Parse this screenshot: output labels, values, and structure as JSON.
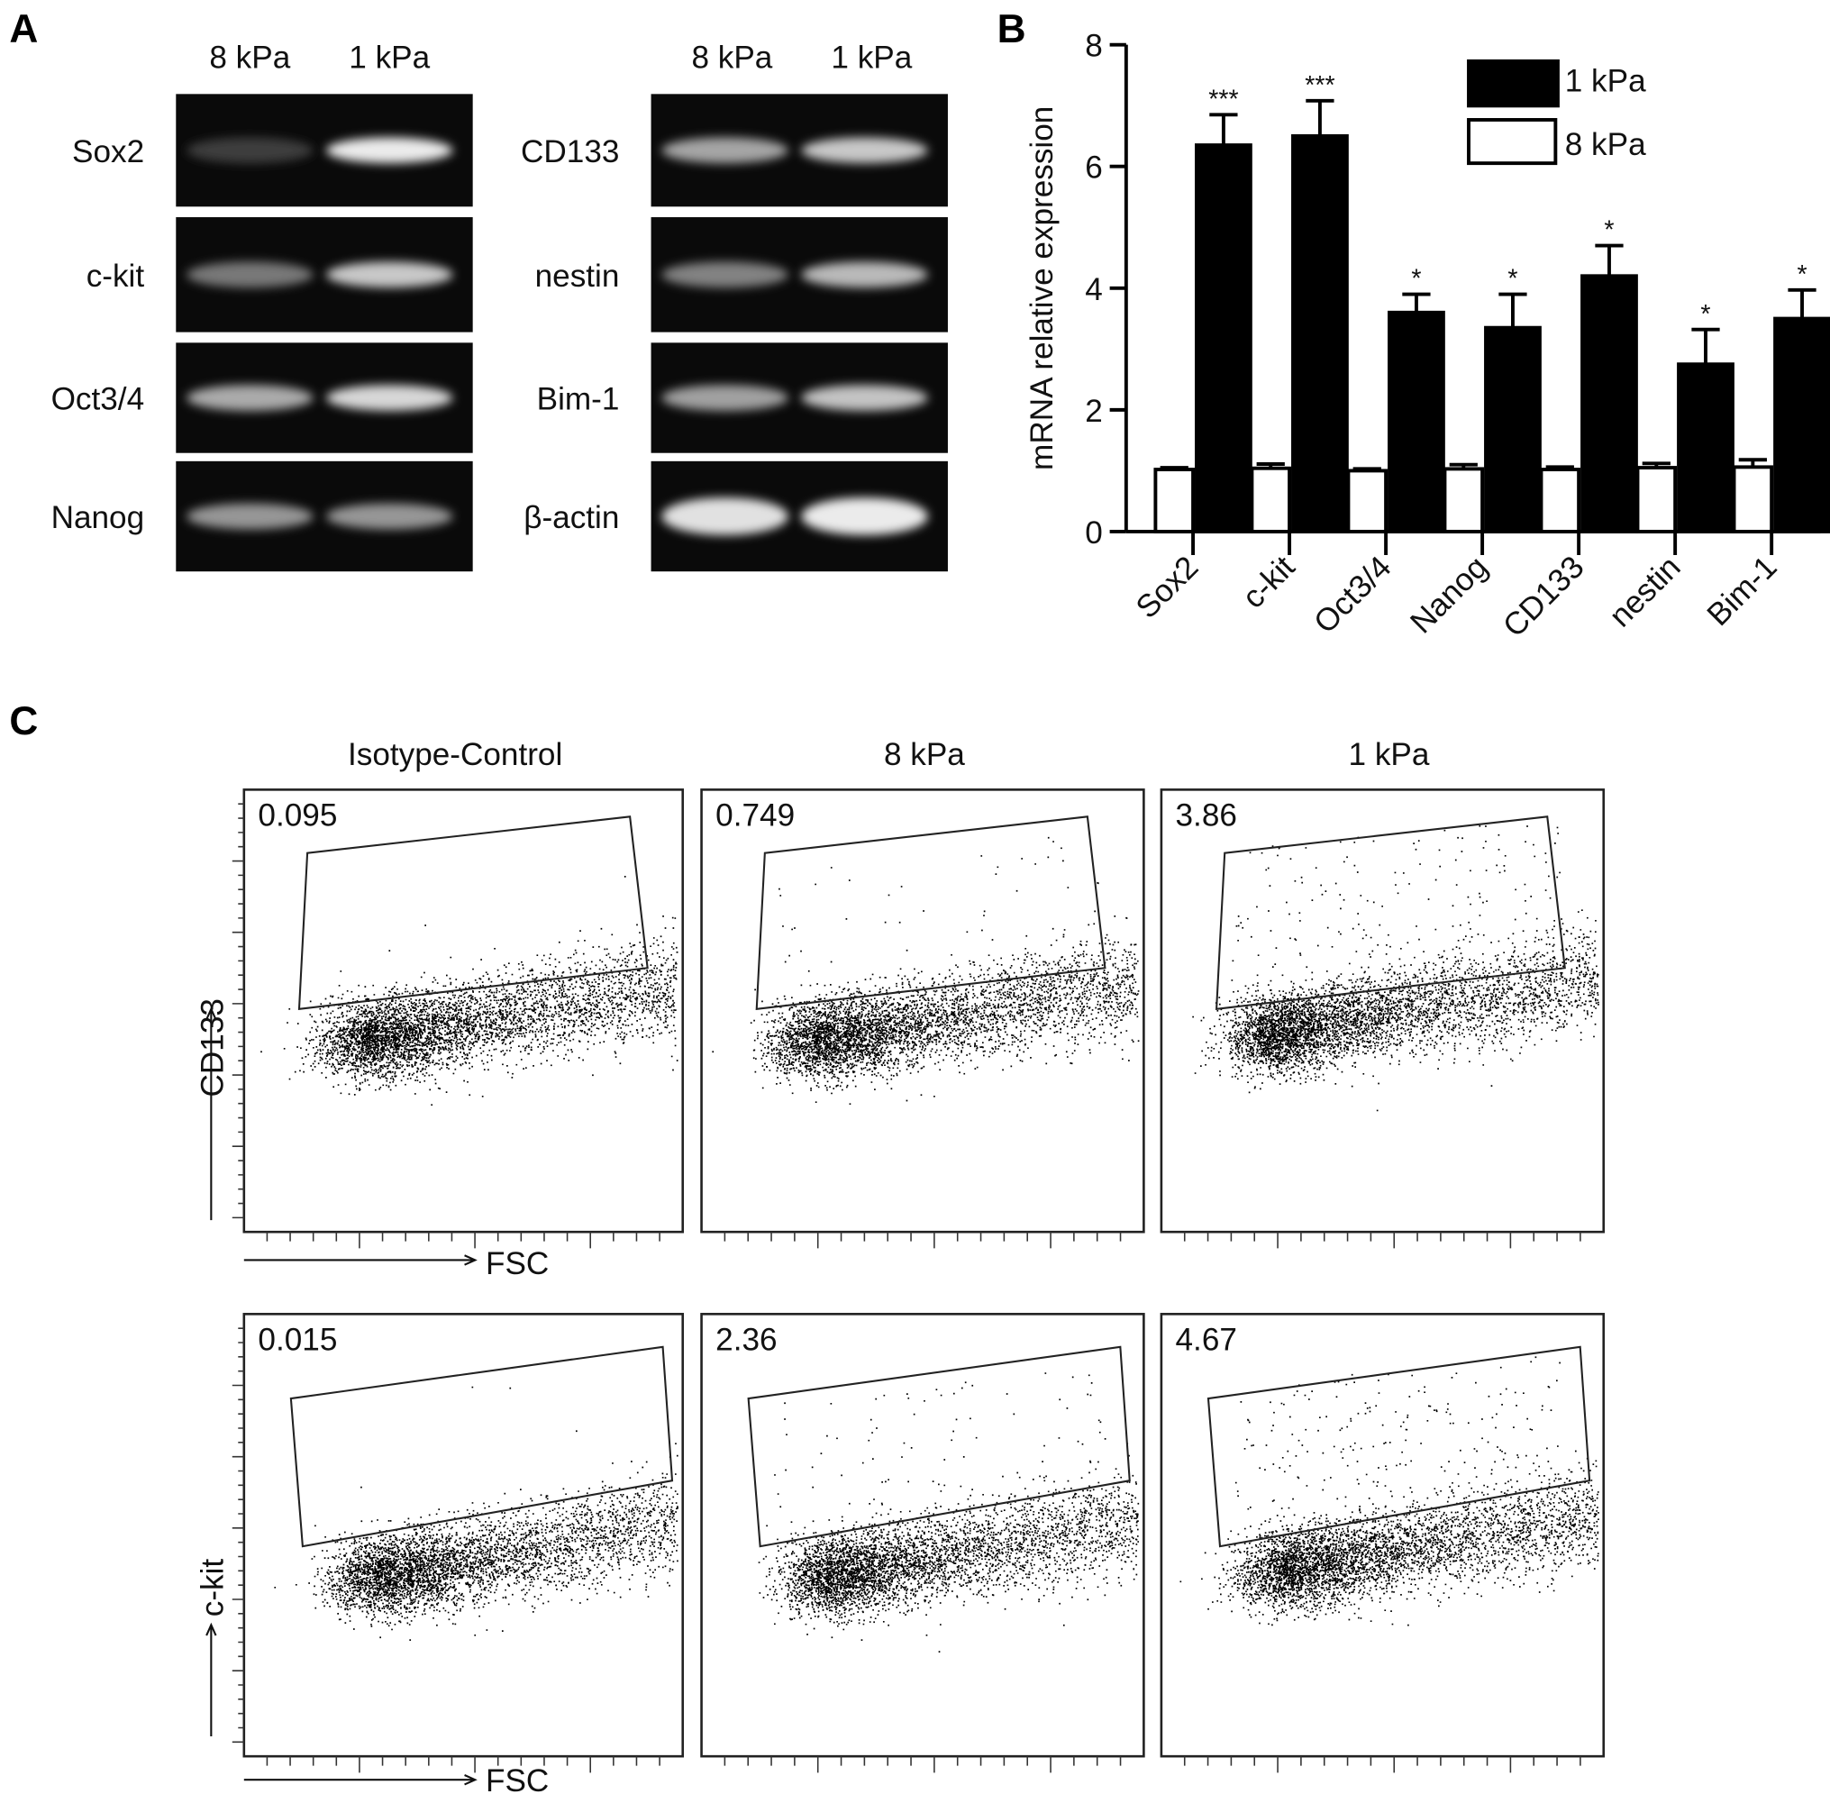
{
  "panels": {
    "a": "A",
    "b": "B",
    "c": "C"
  },
  "gels": {
    "left": {
      "headers": [
        "8 kPa",
        "1 kPa"
      ],
      "rows": [
        "Sox2",
        "c-kit",
        "Oct3/4",
        "Nanog"
      ]
    },
    "right": {
      "headers": [
        "8 kPa",
        "1 kPa"
      ],
      "rows": [
        "CD133",
        "nestin",
        "Bim-1",
        "β-actin"
      ]
    }
  },
  "chart_data": {
    "type": "bar",
    "title": "",
    "xlabel": "",
    "ylabel": "mRNA relative expression",
    "ylim": [
      0,
      8
    ],
    "yticks": [
      "0",
      "2",
      "4",
      "6",
      "8"
    ],
    "grid": false,
    "legend_placement": "top-right",
    "categories": [
      "Sox2",
      "c-kit",
      "Oct3/4",
      "Nanog",
      "CD133",
      "nestin",
      "Bim-1"
    ],
    "series": [
      {
        "name": "8 kPa",
        "color": "#ffffff",
        "values": [
          1.02,
          1.04,
          1.0,
          1.03,
          1.02,
          1.05,
          1.06
        ],
        "errors": [
          0.03,
          0.07,
          0.03,
          0.07,
          0.04,
          0.07,
          0.12
        ]
      },
      {
        "name": "1 kPa",
        "color": "#000000",
        "values": [
          6.35,
          6.5,
          3.6,
          3.35,
          4.2,
          2.75,
          3.5
        ],
        "errors": [
          0.5,
          0.58,
          0.3,
          0.55,
          0.5,
          0.57,
          0.47
        ]
      }
    ],
    "significance": [
      "***",
      "***",
      "*",
      "*",
      "*",
      "*",
      "*"
    ]
  },
  "flow": {
    "titles": [
      "Isotype-Control",
      "8 kPa",
      "1 kPa"
    ],
    "row1": {
      "ylabel": "CD133",
      "xlabel": "FSC",
      "values": [
        "0.095",
        "0.749",
        "3.86"
      ]
    },
    "row2": {
      "ylabel": "c-kit",
      "xlabel": "FSC",
      "values": [
        "0.015",
        "2.36",
        "4.67"
      ]
    }
  }
}
